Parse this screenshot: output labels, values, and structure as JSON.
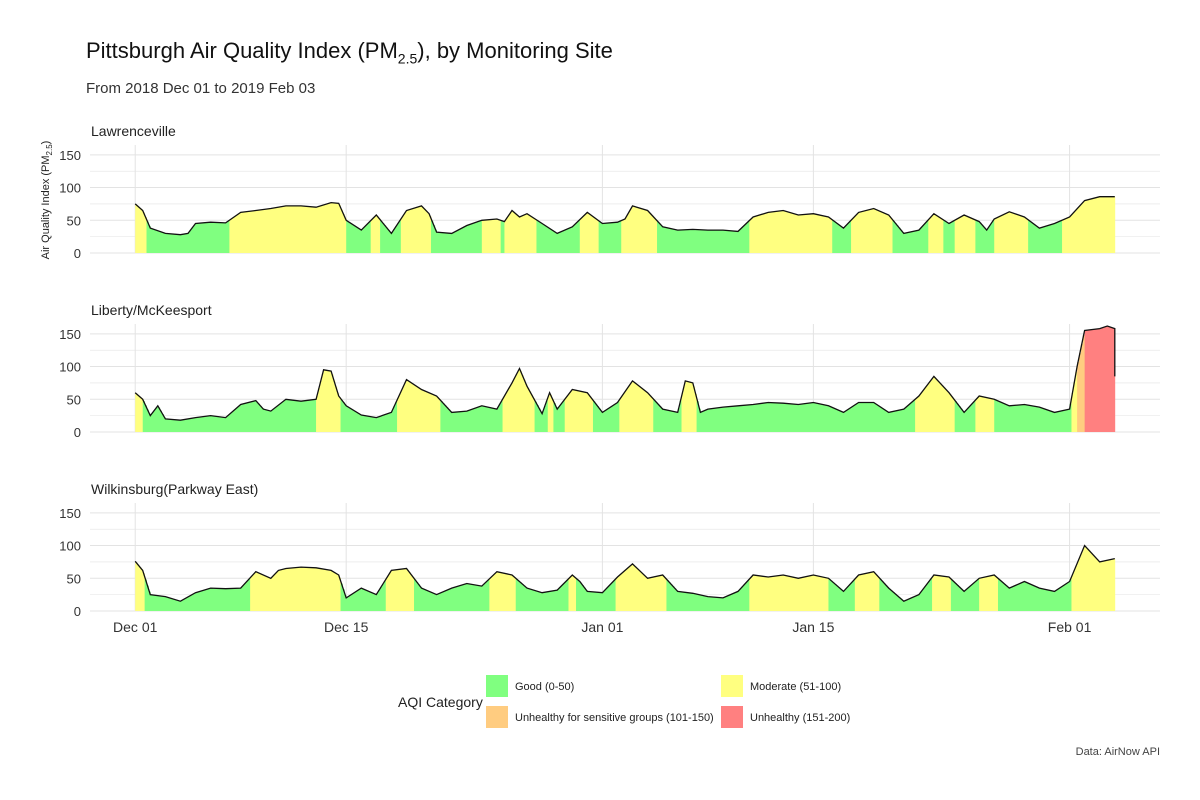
{
  "title_main": "Pittsburgh Air Quality Index (PM",
  "title_sub": "2.5",
  "title_end": "), by Monitoring Site",
  "subtitle": "From 2018 Dec 01 to 2019 Feb 03",
  "caption": "Data: AirNow API",
  "colors": {
    "good": "#80FF80",
    "moderate": "#FFFF80",
    "usg": "#FFCC80",
    "unhealthy": "#FF8080",
    "line": "#111111",
    "grid": "#E3E3E3"
  },
  "legend": {
    "title": "AQI Category",
    "items": [
      {
        "key": "good",
        "label": "Good (0-50)"
      },
      {
        "key": "moderate",
        "label": "Moderate (51-100)"
      },
      {
        "key": "usg",
        "label": "Unhealthy for sensitive groups (101-150)"
      },
      {
        "key": "unhealthy",
        "label": "Unhealthy (151-200)"
      }
    ]
  },
  "chart_data": {
    "type": "area",
    "ylabel": "Air Quality Index (PM2.5)",
    "ylabel_main": "Air Quality Index (PM",
    "ylabel_sub": "2.5",
    "ylabel_end": ")",
    "ylim": [
      0,
      165
    ],
    "yticks": [
      0,
      50,
      100,
      150
    ],
    "xlim": [
      "2018-12-01",
      "2019-02-03"
    ],
    "xticks": [
      {
        "date": "2018-12-01",
        "label": "Dec 01"
      },
      {
        "date": "2018-12-15",
        "label": "Dec 15"
      },
      {
        "date": "2019-01-01",
        "label": "Jan 01"
      },
      {
        "date": "2019-01-15",
        "label": "Jan 15"
      },
      {
        "date": "2019-02-01",
        "label": "Feb 01"
      }
    ],
    "grid": true,
    "series": [
      {
        "name": "Lawrenceville",
        "points": [
          [
            "2018-12-01",
            75
          ],
          [
            "2018-12-01T12",
            65
          ],
          [
            "2018-12-02",
            38
          ],
          [
            "2018-12-03",
            30
          ],
          [
            "2018-12-04",
            28
          ],
          [
            "2018-12-04T12",
            30
          ],
          [
            "2018-12-05",
            45
          ],
          [
            "2018-12-06",
            47
          ],
          [
            "2018-12-07",
            46
          ],
          [
            "2018-12-08",
            62
          ],
          [
            "2018-12-09",
            65
          ],
          [
            "2018-12-10",
            68
          ],
          [
            "2018-12-11",
            72
          ],
          [
            "2018-12-12",
            72
          ],
          [
            "2018-12-13",
            70
          ],
          [
            "2018-12-14",
            77
          ],
          [
            "2018-12-14T12",
            76
          ],
          [
            "2018-12-15",
            50
          ],
          [
            "2018-12-16",
            35
          ],
          [
            "2018-12-17",
            58
          ],
          [
            "2018-12-18",
            30
          ],
          [
            "2018-12-19",
            65
          ],
          [
            "2018-12-20",
            72
          ],
          [
            "2018-12-20T12",
            60
          ],
          [
            "2018-12-21",
            32
          ],
          [
            "2018-12-22",
            30
          ],
          [
            "2018-12-23",
            42
          ],
          [
            "2018-12-24",
            50
          ],
          [
            "2018-12-25",
            52
          ],
          [
            "2018-12-25T12",
            48
          ],
          [
            "2018-12-26",
            65
          ],
          [
            "2018-12-26T12",
            55
          ],
          [
            "2018-12-27",
            60
          ],
          [
            "2018-12-28",
            45
          ],
          [
            "2018-12-29",
            30
          ],
          [
            "2018-12-30",
            40
          ],
          [
            "2018-12-31",
            62
          ],
          [
            "2019-01-01",
            45
          ],
          [
            "2019-01-02",
            47
          ],
          [
            "2019-01-02T12",
            52
          ],
          [
            "2019-01-03",
            72
          ],
          [
            "2019-01-04",
            65
          ],
          [
            "2019-01-05",
            40
          ],
          [
            "2019-01-06",
            35
          ],
          [
            "2019-01-07",
            36
          ],
          [
            "2019-01-08",
            35
          ],
          [
            "2019-01-09",
            35
          ],
          [
            "2019-01-10",
            33
          ],
          [
            "2019-01-11",
            55
          ],
          [
            "2019-01-12",
            62
          ],
          [
            "2019-01-13",
            65
          ],
          [
            "2019-01-14",
            58
          ],
          [
            "2019-01-15",
            60
          ],
          [
            "2019-01-16",
            55
          ],
          [
            "2019-01-17",
            38
          ],
          [
            "2019-01-18",
            62
          ],
          [
            "2019-01-19",
            68
          ],
          [
            "2019-01-20",
            58
          ],
          [
            "2019-01-21",
            30
          ],
          [
            "2019-01-22",
            35
          ],
          [
            "2019-01-23",
            60
          ],
          [
            "2019-01-24",
            45
          ],
          [
            "2019-01-25",
            58
          ],
          [
            "2019-01-26",
            48
          ],
          [
            "2019-01-26T12",
            35
          ],
          [
            "2019-01-27",
            52
          ],
          [
            "2019-01-28",
            63
          ],
          [
            "2019-01-29",
            55
          ],
          [
            "2019-01-30",
            38
          ],
          [
            "2019-01-31",
            45
          ],
          [
            "2019-02-01",
            55
          ],
          [
            "2019-02-02",
            80
          ],
          [
            "2019-02-03",
            86
          ],
          [
            "2019-02-04",
            86
          ]
        ]
      },
      {
        "name": "Liberty/McKeesport",
        "points": [
          [
            "2018-12-01",
            60
          ],
          [
            "2018-12-01T12",
            50
          ],
          [
            "2018-12-02",
            25
          ],
          [
            "2018-12-02T12",
            40
          ],
          [
            "2018-12-03",
            20
          ],
          [
            "2018-12-04",
            18
          ],
          [
            "2018-12-05",
            22
          ],
          [
            "2018-12-06",
            25
          ],
          [
            "2018-12-07",
            22
          ],
          [
            "2018-12-08",
            42
          ],
          [
            "2018-12-09",
            48
          ],
          [
            "2018-12-09T12",
            35
          ],
          [
            "2018-12-10",
            32
          ],
          [
            "2018-12-11",
            50
          ],
          [
            "2018-12-12",
            47
          ],
          [
            "2018-12-13",
            50
          ],
          [
            "2018-12-13T12",
            95
          ],
          [
            "2018-12-14",
            93
          ],
          [
            "2018-12-14T12",
            55
          ],
          [
            "2018-12-15",
            40
          ],
          [
            "2018-12-16",
            26
          ],
          [
            "2018-12-17",
            22
          ],
          [
            "2018-12-18",
            30
          ],
          [
            "2018-12-19",
            80
          ],
          [
            "2018-12-20",
            65
          ],
          [
            "2018-12-21",
            55
          ],
          [
            "2018-12-22",
            30
          ],
          [
            "2018-12-23",
            32
          ],
          [
            "2018-12-24",
            40
          ],
          [
            "2018-12-25",
            35
          ],
          [
            "2018-12-26",
            75
          ],
          [
            "2018-12-26T12",
            97
          ],
          [
            "2018-12-27",
            70
          ],
          [
            "2018-12-28",
            28
          ],
          [
            "2018-12-28T12",
            60
          ],
          [
            "2018-12-29",
            35
          ],
          [
            "2018-12-30",
            65
          ],
          [
            "2018-12-31",
            60
          ],
          [
            "2019-01-01",
            30
          ],
          [
            "2019-01-02",
            45
          ],
          [
            "2019-01-03",
            78
          ],
          [
            "2019-01-04",
            60
          ],
          [
            "2019-01-05",
            35
          ],
          [
            "2019-01-06",
            30
          ],
          [
            "2019-01-06T12",
            78
          ],
          [
            "2019-01-07",
            75
          ],
          [
            "2019-01-07T12",
            30
          ],
          [
            "2019-01-08",
            35
          ],
          [
            "2019-01-09",
            38
          ],
          [
            "2019-01-10",
            40
          ],
          [
            "2019-01-11",
            42
          ],
          [
            "2019-01-12",
            45
          ],
          [
            "2019-01-13",
            44
          ],
          [
            "2019-01-14",
            42
          ],
          [
            "2019-01-15",
            45
          ],
          [
            "2019-01-16",
            40
          ],
          [
            "2019-01-17",
            30
          ],
          [
            "2019-01-18",
            45
          ],
          [
            "2019-01-19",
            45
          ],
          [
            "2019-01-20",
            30
          ],
          [
            "2019-01-21",
            35
          ],
          [
            "2019-01-22",
            55
          ],
          [
            "2019-01-23",
            85
          ],
          [
            "2019-01-24",
            60
          ],
          [
            "2019-01-25",
            30
          ],
          [
            "2019-01-26",
            55
          ],
          [
            "2019-01-27",
            50
          ],
          [
            "2019-01-28",
            40
          ],
          [
            "2019-01-29",
            42
          ],
          [
            "2019-01-30",
            38
          ],
          [
            "2019-01-31",
            30
          ],
          [
            "2019-02-01",
            35
          ],
          [
            "2019-02-01T12",
            100
          ],
          [
            "2019-02-02",
            155
          ],
          [
            "2019-02-03",
            158
          ],
          [
            "2019-02-03T12",
            162
          ],
          [
            "2019-02-04",
            158
          ],
          [
            "2019-02-04",
            85
          ]
        ]
      },
      {
        "name": "Wilkinsburg(Parkway East)",
        "points": [
          [
            "2018-12-01",
            76
          ],
          [
            "2018-12-01T12",
            62
          ],
          [
            "2018-12-02",
            25
          ],
          [
            "2018-12-03",
            22
          ],
          [
            "2018-12-04",
            15
          ],
          [
            "2018-12-05",
            28
          ],
          [
            "2018-12-06",
            35
          ],
          [
            "2018-12-07",
            34
          ],
          [
            "2018-12-08",
            35
          ],
          [
            "2018-12-09",
            60
          ],
          [
            "2018-12-10",
            50
          ],
          [
            "2018-12-10T12",
            62
          ],
          [
            "2018-12-11",
            65
          ],
          [
            "2018-12-12",
            67
          ],
          [
            "2018-12-13",
            66
          ],
          [
            "2018-12-14",
            62
          ],
          [
            "2018-12-14T12",
            55
          ],
          [
            "2018-12-15",
            20
          ],
          [
            "2018-12-16",
            35
          ],
          [
            "2018-12-17",
            25
          ],
          [
            "2018-12-18",
            62
          ],
          [
            "2018-12-19",
            65
          ],
          [
            "2018-12-20",
            35
          ],
          [
            "2018-12-21",
            25
          ],
          [
            "2018-12-22",
            35
          ],
          [
            "2018-12-23",
            42
          ],
          [
            "2018-12-24",
            38
          ],
          [
            "2018-12-25",
            60
          ],
          [
            "2018-12-26",
            55
          ],
          [
            "2018-12-27",
            35
          ],
          [
            "2018-12-28",
            28
          ],
          [
            "2018-12-29",
            32
          ],
          [
            "2018-12-30",
            55
          ],
          [
            "2018-12-30T12",
            45
          ],
          [
            "2018-12-31",
            30
          ],
          [
            "2019-01-01",
            28
          ],
          [
            "2019-01-02",
            52
          ],
          [
            "2019-01-03",
            72
          ],
          [
            "2019-01-04",
            50
          ],
          [
            "2019-01-05",
            55
          ],
          [
            "2019-01-06",
            30
          ],
          [
            "2019-01-07",
            27
          ],
          [
            "2019-01-08",
            22
          ],
          [
            "2019-01-09",
            20
          ],
          [
            "2019-01-10",
            30
          ],
          [
            "2019-01-11",
            55
          ],
          [
            "2019-01-12",
            52
          ],
          [
            "2019-01-13",
            55
          ],
          [
            "2019-01-14",
            50
          ],
          [
            "2019-01-15",
            55
          ],
          [
            "2019-01-16",
            50
          ],
          [
            "2019-01-17",
            30
          ],
          [
            "2019-01-18",
            55
          ],
          [
            "2019-01-19",
            60
          ],
          [
            "2019-01-20",
            35
          ],
          [
            "2019-01-21",
            15
          ],
          [
            "2019-01-22",
            25
          ],
          [
            "2019-01-23",
            55
          ],
          [
            "2019-01-24",
            52
          ],
          [
            "2019-01-25",
            30
          ],
          [
            "2019-01-26",
            50
          ],
          [
            "2019-01-27",
            55
          ],
          [
            "2019-01-28",
            35
          ],
          [
            "2019-01-29",
            45
          ],
          [
            "2019-01-30",
            35
          ],
          [
            "2019-01-31",
            30
          ],
          [
            "2019-02-01",
            45
          ],
          [
            "2019-02-02",
            100
          ],
          [
            "2019-02-03",
            75
          ],
          [
            "2019-02-04",
            80
          ]
        ]
      }
    ]
  }
}
